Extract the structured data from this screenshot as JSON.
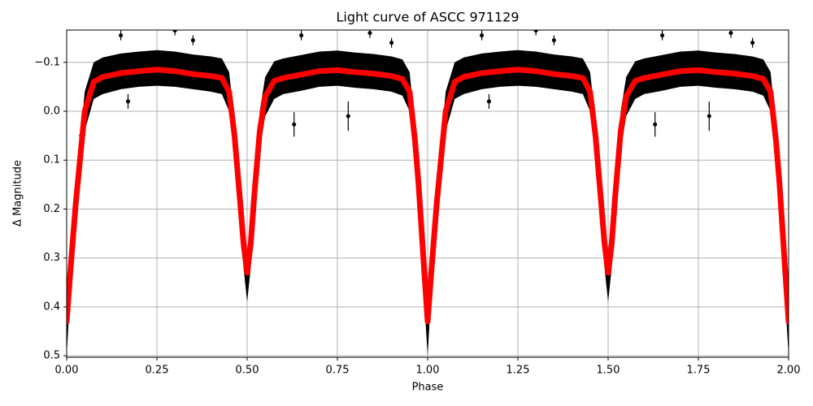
{
  "chart_data": {
    "type": "lightcurve",
    "title": "Light curve of ASCC 971129",
    "x_label": "Phase",
    "y_label": "Δ Magnitude",
    "xlim": [
      0,
      2
    ],
    "ylim": [
      -0.166,
      0.503
    ],
    "y_inverted": true,
    "grid": true,
    "xticks": [
      {
        "value": 0,
        "label": "0.00"
      },
      {
        "value": 0.25,
        "label": "0.25"
      },
      {
        "value": 0.5,
        "label": "0.50"
      },
      {
        "value": 0.75,
        "label": "0.75"
      },
      {
        "value": 1,
        "label": "1.00"
      },
      {
        "value": 1.25,
        "label": "1.25"
      },
      {
        "value": 1.5,
        "label": "1.50"
      },
      {
        "value": 1.75,
        "label": "1.75"
      },
      {
        "value": 2,
        "label": "2.00"
      }
    ],
    "yticks": [
      {
        "value": -0.1,
        "label": "−0.1"
      },
      {
        "value": 0,
        "label": "0.0"
      },
      0.1,
      0.2,
      0.3,
      0.4,
      0.5
    ],
    "band": {
      "color": "#000000",
      "x": [
        0,
        0.01,
        0.025,
        0.05,
        0.075,
        0.1,
        0.15,
        0.2,
        0.25,
        0.3,
        0.35,
        0.4,
        0.43,
        0.45,
        0.465,
        0.48,
        0.49,
        0.5,
        0.51,
        0.52,
        0.535,
        0.55,
        0.575,
        0.6,
        0.65,
        0.7,
        0.75,
        0.8,
        0.85,
        0.9,
        0.93,
        0.95,
        0.965,
        0.975,
        0.99,
        1,
        1.01,
        1.025,
        1.05,
        1.075,
        1.1,
        1.15,
        1.2,
        1.25,
        1.3,
        1.35,
        1.4,
        1.43,
        1.45,
        1.465,
        1.48,
        1.49,
        1.5,
        1.51,
        1.52,
        1.535,
        1.55,
        1.575,
        1.6,
        1.65,
        1.7,
        1.75,
        1.8,
        1.85,
        1.9,
        1.93,
        1.95,
        1.965,
        1.975,
        1.99,
        2
      ],
      "top": [
        0.35,
        0.3,
        0.16,
        -0.04,
        -0.1,
        -0.11,
        -0.118,
        -0.122,
        -0.125,
        -0.122,
        -0.116,
        -0.112,
        -0.108,
        -0.08,
        0.02,
        0.15,
        0.24,
        0.3,
        0.24,
        0.14,
        0,
        -0.07,
        -0.102,
        -0.108,
        -0.115,
        -0.122,
        -0.124,
        -0.12,
        -0.117,
        -0.112,
        -0.106,
        -0.08,
        0.03,
        0.12,
        0.29,
        0.35,
        0.3,
        0.16,
        -0.04,
        -0.1,
        -0.11,
        -0.118,
        -0.122,
        -0.125,
        -0.122,
        -0.116,
        -0.112,
        -0.108,
        -0.08,
        0.02,
        0.15,
        0.24,
        0.3,
        0.24,
        0.14,
        0,
        -0.07,
        -0.102,
        -0.108,
        -0.115,
        -0.122,
        -0.124,
        -0.12,
        -0.117,
        -0.112,
        -0.106,
        -0.08,
        0.03,
        0.12,
        0.29,
        0.35
      ],
      "bottom": [
        0.5,
        0.37,
        0.23,
        0.04,
        -0.025,
        -0.035,
        -0.045,
        -0.05,
        -0.052,
        -0.05,
        -0.045,
        -0.04,
        -0.035,
        0,
        0.09,
        0.22,
        0.32,
        0.39,
        0.32,
        0.21,
        0.08,
        0.01,
        -0.025,
        -0.035,
        -0.042,
        -0.05,
        -0.052,
        -0.048,
        -0.045,
        -0.04,
        -0.032,
        0,
        0.1,
        0.2,
        0.38,
        0.5,
        0.37,
        0.23,
        0.04,
        -0.025,
        -0.035,
        -0.045,
        -0.05,
        -0.052,
        -0.05,
        -0.045,
        -0.04,
        -0.035,
        0,
        0.09,
        0.22,
        0.32,
        0.39,
        0.32,
        0.21,
        0.08,
        0.01,
        -0.025,
        -0.035,
        -0.042,
        -0.05,
        -0.052,
        -0.048,
        -0.045,
        -0.04,
        -0.032,
        0,
        0.1,
        0.2,
        0.38,
        0.5
      ]
    },
    "points": {
      "color": "#000000",
      "x": [
        0.15,
        0.3,
        0.17,
        0.35,
        0.63,
        0.78,
        0.65,
        0.84,
        0.9,
        1.15,
        1.3,
        1.17,
        1.35,
        1.63,
        1.78,
        1.65,
        1.84,
        1.9,
        0.04,
        1.54
      ],
      "y": [
        -0.155,
        -0.165,
        -0.02,
        -0.145,
        0.027,
        0.01,
        -0.155,
        -0.16,
        -0.14,
        -0.155,
        -0.165,
        -0.02,
        -0.145,
        0.027,
        0.01,
        -0.155,
        -0.16,
        -0.14,
        0.05,
        0.02
      ],
      "err": [
        0.01,
        0.01,
        0.015,
        0.01,
        0.025,
        0.03,
        0.01,
        0.01,
        0.01,
        0.01,
        0.01,
        0.015,
        0.01,
        0.025,
        0.03,
        0.01,
        0.01,
        0.01,
        0.015,
        0.015
      ]
    },
    "model": {
      "color": "#ff0000",
      "x": [
        0,
        0.01,
        0.025,
        0.05,
        0.075,
        0.1,
        0.15,
        0.2,
        0.25,
        0.3,
        0.35,
        0.4,
        0.43,
        0.45,
        0.465,
        0.48,
        0.49,
        0.5,
        0.51,
        0.52,
        0.535,
        0.55,
        0.575,
        0.6,
        0.65,
        0.7,
        0.75,
        0.8,
        0.85,
        0.9,
        0.93,
        0.95,
        0.965,
        0.975,
        0.99,
        1,
        1.01,
        1.025,
        1.05,
        1.075,
        1.1,
        1.15,
        1.2,
        1.25,
        1.3,
        1.35,
        1.4,
        1.43,
        1.45,
        1.465,
        1.48,
        1.49,
        1.5,
        1.51,
        1.52,
        1.535,
        1.55,
        1.575,
        1.6,
        1.65,
        1.7,
        1.75,
        1.8,
        1.85,
        1.9,
        1.93,
        1.95,
        1.965,
        1.975,
        1.99,
        2
      ],
      "y": [
        0.43,
        0.33,
        0.19,
        0,
        -0.06,
        -0.07,
        -0.078,
        -0.082,
        -0.085,
        -0.082,
        -0.076,
        -0.072,
        -0.068,
        -0.04,
        0.05,
        0.18,
        0.27,
        0.33,
        0.27,
        0.17,
        0.04,
        -0.03,
        -0.062,
        -0.068,
        -0.075,
        -0.082,
        -0.084,
        -0.08,
        -0.077,
        -0.072,
        -0.066,
        -0.04,
        0.06,
        0.15,
        0.32,
        0.43,
        0.33,
        0.19,
        0,
        -0.06,
        -0.07,
        -0.078,
        -0.082,
        -0.085,
        -0.082,
        -0.076,
        -0.072,
        -0.068,
        -0.04,
        0.05,
        0.18,
        0.27,
        0.33,
        0.27,
        0.17,
        0.04,
        -0.03,
        -0.062,
        -0.068,
        -0.075,
        -0.082,
        -0.084,
        -0.08,
        -0.077,
        -0.072,
        -0.066,
        -0.04,
        0.06,
        0.15,
        0.32,
        0.43
      ]
    }
  }
}
